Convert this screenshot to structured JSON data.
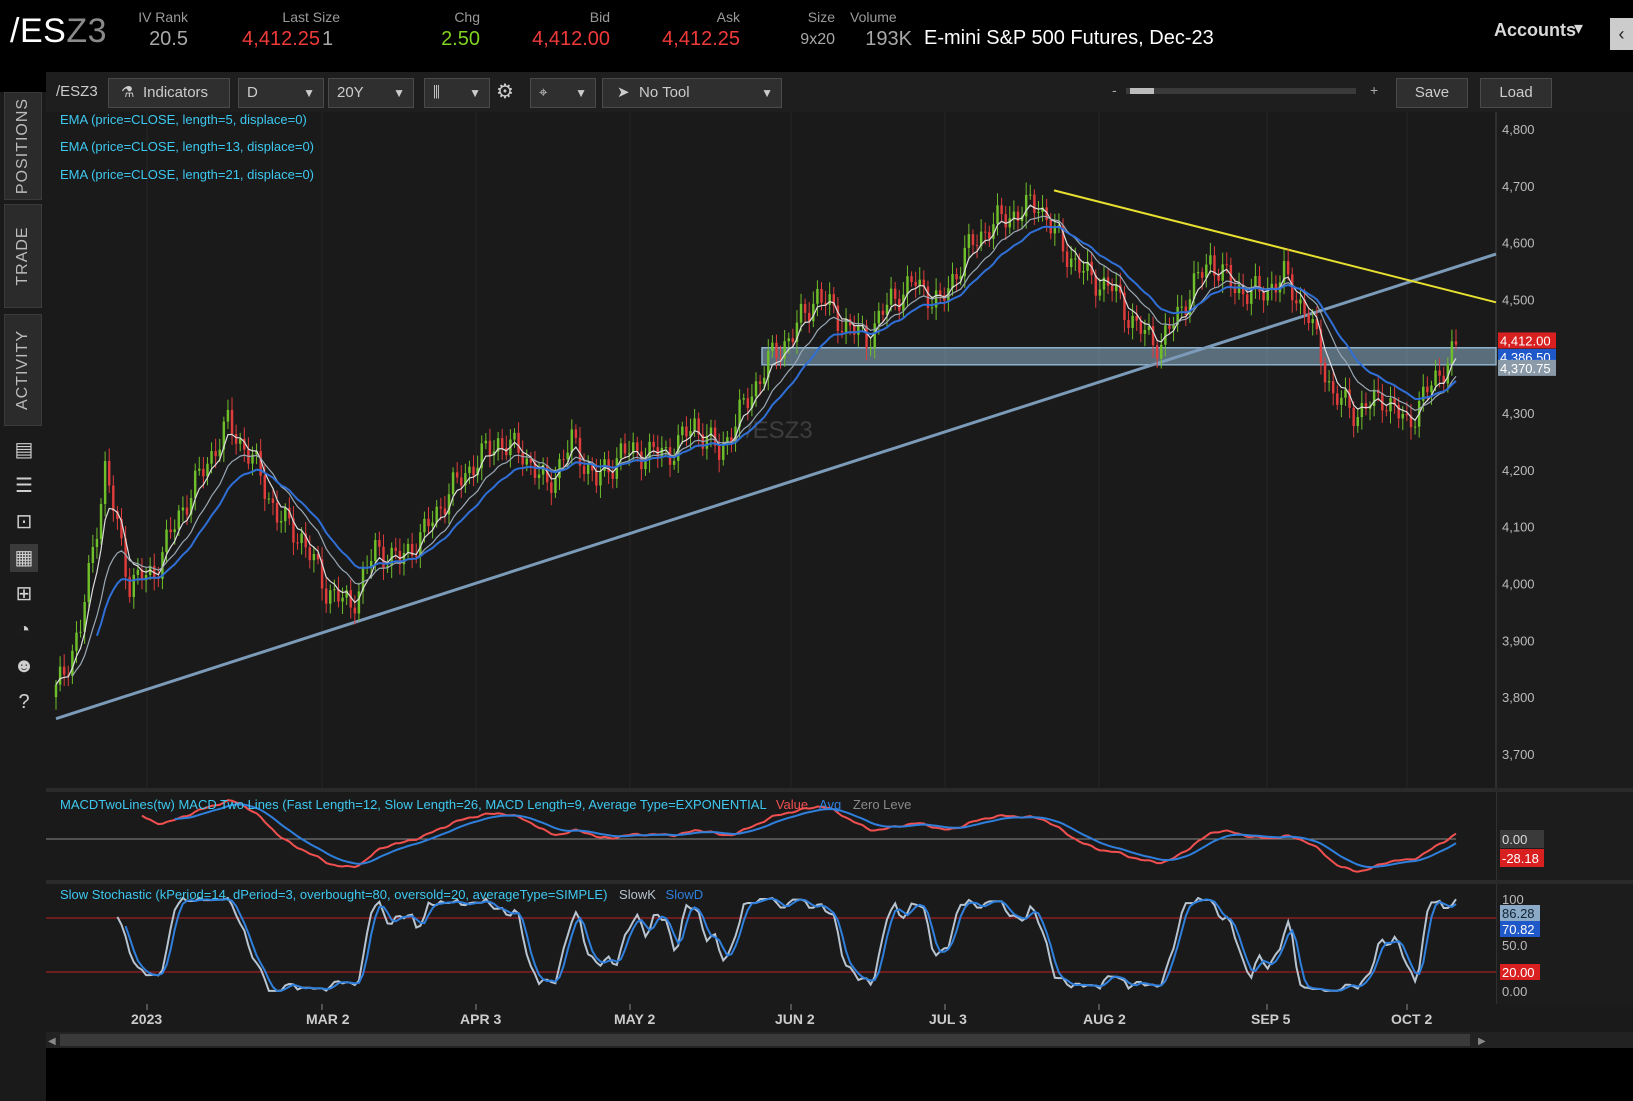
{
  "header": {
    "symbol_main": "/ES",
    "symbol_suffix": "Z3",
    "quotes": [
      {
        "label": "IV Rank",
        "value": "20.5",
        "color": "#a8a8a8"
      },
      {
        "label": "Last Size",
        "value": "4,412.25",
        "extra": "1",
        "color": "#f03a3a"
      },
      {
        "label": "Chg",
        "value": "2.50",
        "color": "#7ed321"
      },
      {
        "label": "Bid",
        "value": "4,412.00",
        "color": "#f03a3a"
      },
      {
        "label": "Ask",
        "value": "4,412.25",
        "color": "#f03a3a"
      },
      {
        "label": "Size",
        "value": "9x20",
        "color": "#a8a8a8"
      },
      {
        "label": "Volume",
        "value": "193K",
        "color": "#a8a8a8"
      }
    ],
    "description": "E-mini S&P 500 Futures, Dec-23",
    "accounts_label": "Accounts"
  },
  "side_tabs": [
    "POSITIONS",
    "TRADE",
    "ACTIVITY"
  ],
  "side_icons": [
    "chart-icon",
    "list-icon",
    "tv-icon",
    "grid-chart-icon",
    "tiles-icon",
    "gauge-icon",
    "people-icon",
    "help-icon"
  ],
  "toolbar": {
    "symbol": "/ESZ3",
    "indicators_label": "Indicators",
    "aggregation": "D",
    "timeframe": "20Y",
    "tool": "No Tool",
    "zoom_minus": "-",
    "zoom_plus": "+",
    "save_label": "Save",
    "load_label": "Load"
  },
  "studies": [
    "EMA (price=CLOSE, length=5, displace=0)",
    "EMA (price=CLOSE, length=13, displace=0)",
    "EMA (price=CLOSE, length=21, displace=0)"
  ],
  "watermark": "/ESZ3",
  "macd_label": {
    "title": "MACDTwoLines(tw) MACD Two Lines (Fast Length=12, Slow Length=26, MACD Length=9, Average Type=EXPONENTIAL",
    "value": "Value",
    "avg": "Avg",
    "zero": "Zero Leve"
  },
  "stoch_label": {
    "title": "Slow Stochastic (kPeriod=14, dPeriod=3, overbought=80, oversold=20, averageType=SIMPLE)",
    "slowk": "SlowK",
    "slowd": "SlowD"
  },
  "colors": {
    "bull": "#6fbf2a",
    "bear": "#e03c3c",
    "ema5": "#dddddd",
    "ema13": "#9aa8b4",
    "ema21": "#2f6fd6",
    "trend_support": "#7b9bb8",
    "trend_resistance": "#e8e030",
    "zone": "#8fb2cc",
    "macd_value": "#f05050",
    "macd_avg": "#2f7fdc",
    "stoch_k": "#b8c4d0",
    "stoch_d": "#2f7fdc"
  },
  "chart_data": {
    "type": "candlestick",
    "price_axis": {
      "ticks": [
        "4,800",
        "4,700",
        "4,600",
        "4,500",
        "4,400",
        "4,300",
        "4,200",
        "4,100",
        "4,000",
        "3,900",
        "3,800",
        "3,700"
      ],
      "range": [
        3640,
        4830
      ]
    },
    "time_axis": {
      "labels": [
        "2023",
        "MAR 2",
        "APR 3",
        "MAY 2",
        "JUN 2",
        "JUL 3",
        "AUG 2",
        "SEP 5",
        "OCT 2"
      ]
    },
    "price_badges": [
      {
        "value": "4,412.00",
        "bg": "#d82020"
      },
      {
        "value": "4,386.50",
        "bg": "#1f58c8"
      },
      {
        "value": "4,370.75",
        "bg": "#8a9aa8"
      }
    ],
    "support_zone": [
      4385,
      4415
    ],
    "support_trendline": {
      "from": 3762,
      "to": 4580
    },
    "resistance_trendline": {
      "from": 4692,
      "to": 4495
    },
    "close_path": [
      {
        "t": 0,
        "p": 3810
      },
      {
        "t": 6,
        "p": 3920
      },
      {
        "t": 12,
        "p": 4200
      },
      {
        "t": 18,
        "p": 4000
      },
      {
        "t": 24,
        "p": 4020
      },
      {
        "t": 30,
        "p": 4120
      },
      {
        "t": 36,
        "p": 4200
      },
      {
        "t": 42,
        "p": 4280
      },
      {
        "t": 48,
        "p": 4220
      },
      {
        "t": 54,
        "p": 4120
      },
      {
        "t": 60,
        "p": 4080
      },
      {
        "t": 66,
        "p": 3990
      },
      {
        "t": 72,
        "p": 3960
      },
      {
        "t": 78,
        "p": 4060
      },
      {
        "t": 84,
        "p": 4040
      },
      {
        "t": 90,
        "p": 4090
      },
      {
        "t": 96,
        "p": 4160
      },
      {
        "t": 102,
        "p": 4210
      },
      {
        "t": 108,
        "p": 4250
      },
      {
        "t": 114,
        "p": 4230
      },
      {
        "t": 120,
        "p": 4170
      },
      {
        "t": 126,
        "p": 4250
      },
      {
        "t": 132,
        "p": 4180
      },
      {
        "t": 138,
        "p": 4230
      },
      {
        "t": 144,
        "p": 4230
      },
      {
        "t": 150,
        "p": 4230
      },
      {
        "t": 156,
        "p": 4280
      },
      {
        "t": 162,
        "p": 4230
      },
      {
        "t": 168,
        "p": 4310
      },
      {
        "t": 174,
        "p": 4390
      },
      {
        "t": 180,
        "p": 4440
      },
      {
        "t": 186,
        "p": 4510
      },
      {
        "t": 192,
        "p": 4460
      },
      {
        "t": 198,
        "p": 4430
      },
      {
        "t": 204,
        "p": 4500
      },
      {
        "t": 210,
        "p": 4530
      },
      {
        "t": 216,
        "p": 4490
      },
      {
        "t": 222,
        "p": 4580
      },
      {
        "t": 228,
        "p": 4630
      },
      {
        "t": 234,
        "p": 4650
      },
      {
        "t": 240,
        "p": 4670
      },
      {
        "t": 246,
        "p": 4590
      },
      {
        "t": 252,
        "p": 4540
      },
      {
        "t": 258,
        "p": 4520
      },
      {
        "t": 264,
        "p": 4450
      },
      {
        "t": 270,
        "p": 4420
      },
      {
        "t": 276,
        "p": 4500
      },
      {
        "t": 282,
        "p": 4570
      },
      {
        "t": 288,
        "p": 4520
      },
      {
        "t": 294,
        "p": 4510
      },
      {
        "t": 300,
        "p": 4540
      },
      {
        "t": 306,
        "p": 4470
      },
      {
        "t": 312,
        "p": 4330
      },
      {
        "t": 318,
        "p": 4300
      },
      {
        "t": 324,
        "p": 4330
      },
      {
        "t": 330,
        "p": 4280
      },
      {
        "t": 336,
        "p": 4350
      },
      {
        "t": 342,
        "p": 4412
      }
    ],
    "macd_axis": [
      "0.00",
      "-28.18"
    ],
    "stoch_axis": [
      "100",
      "86.28",
      "70.82",
      "50.0",
      "20.00",
      "0.00"
    ]
  }
}
